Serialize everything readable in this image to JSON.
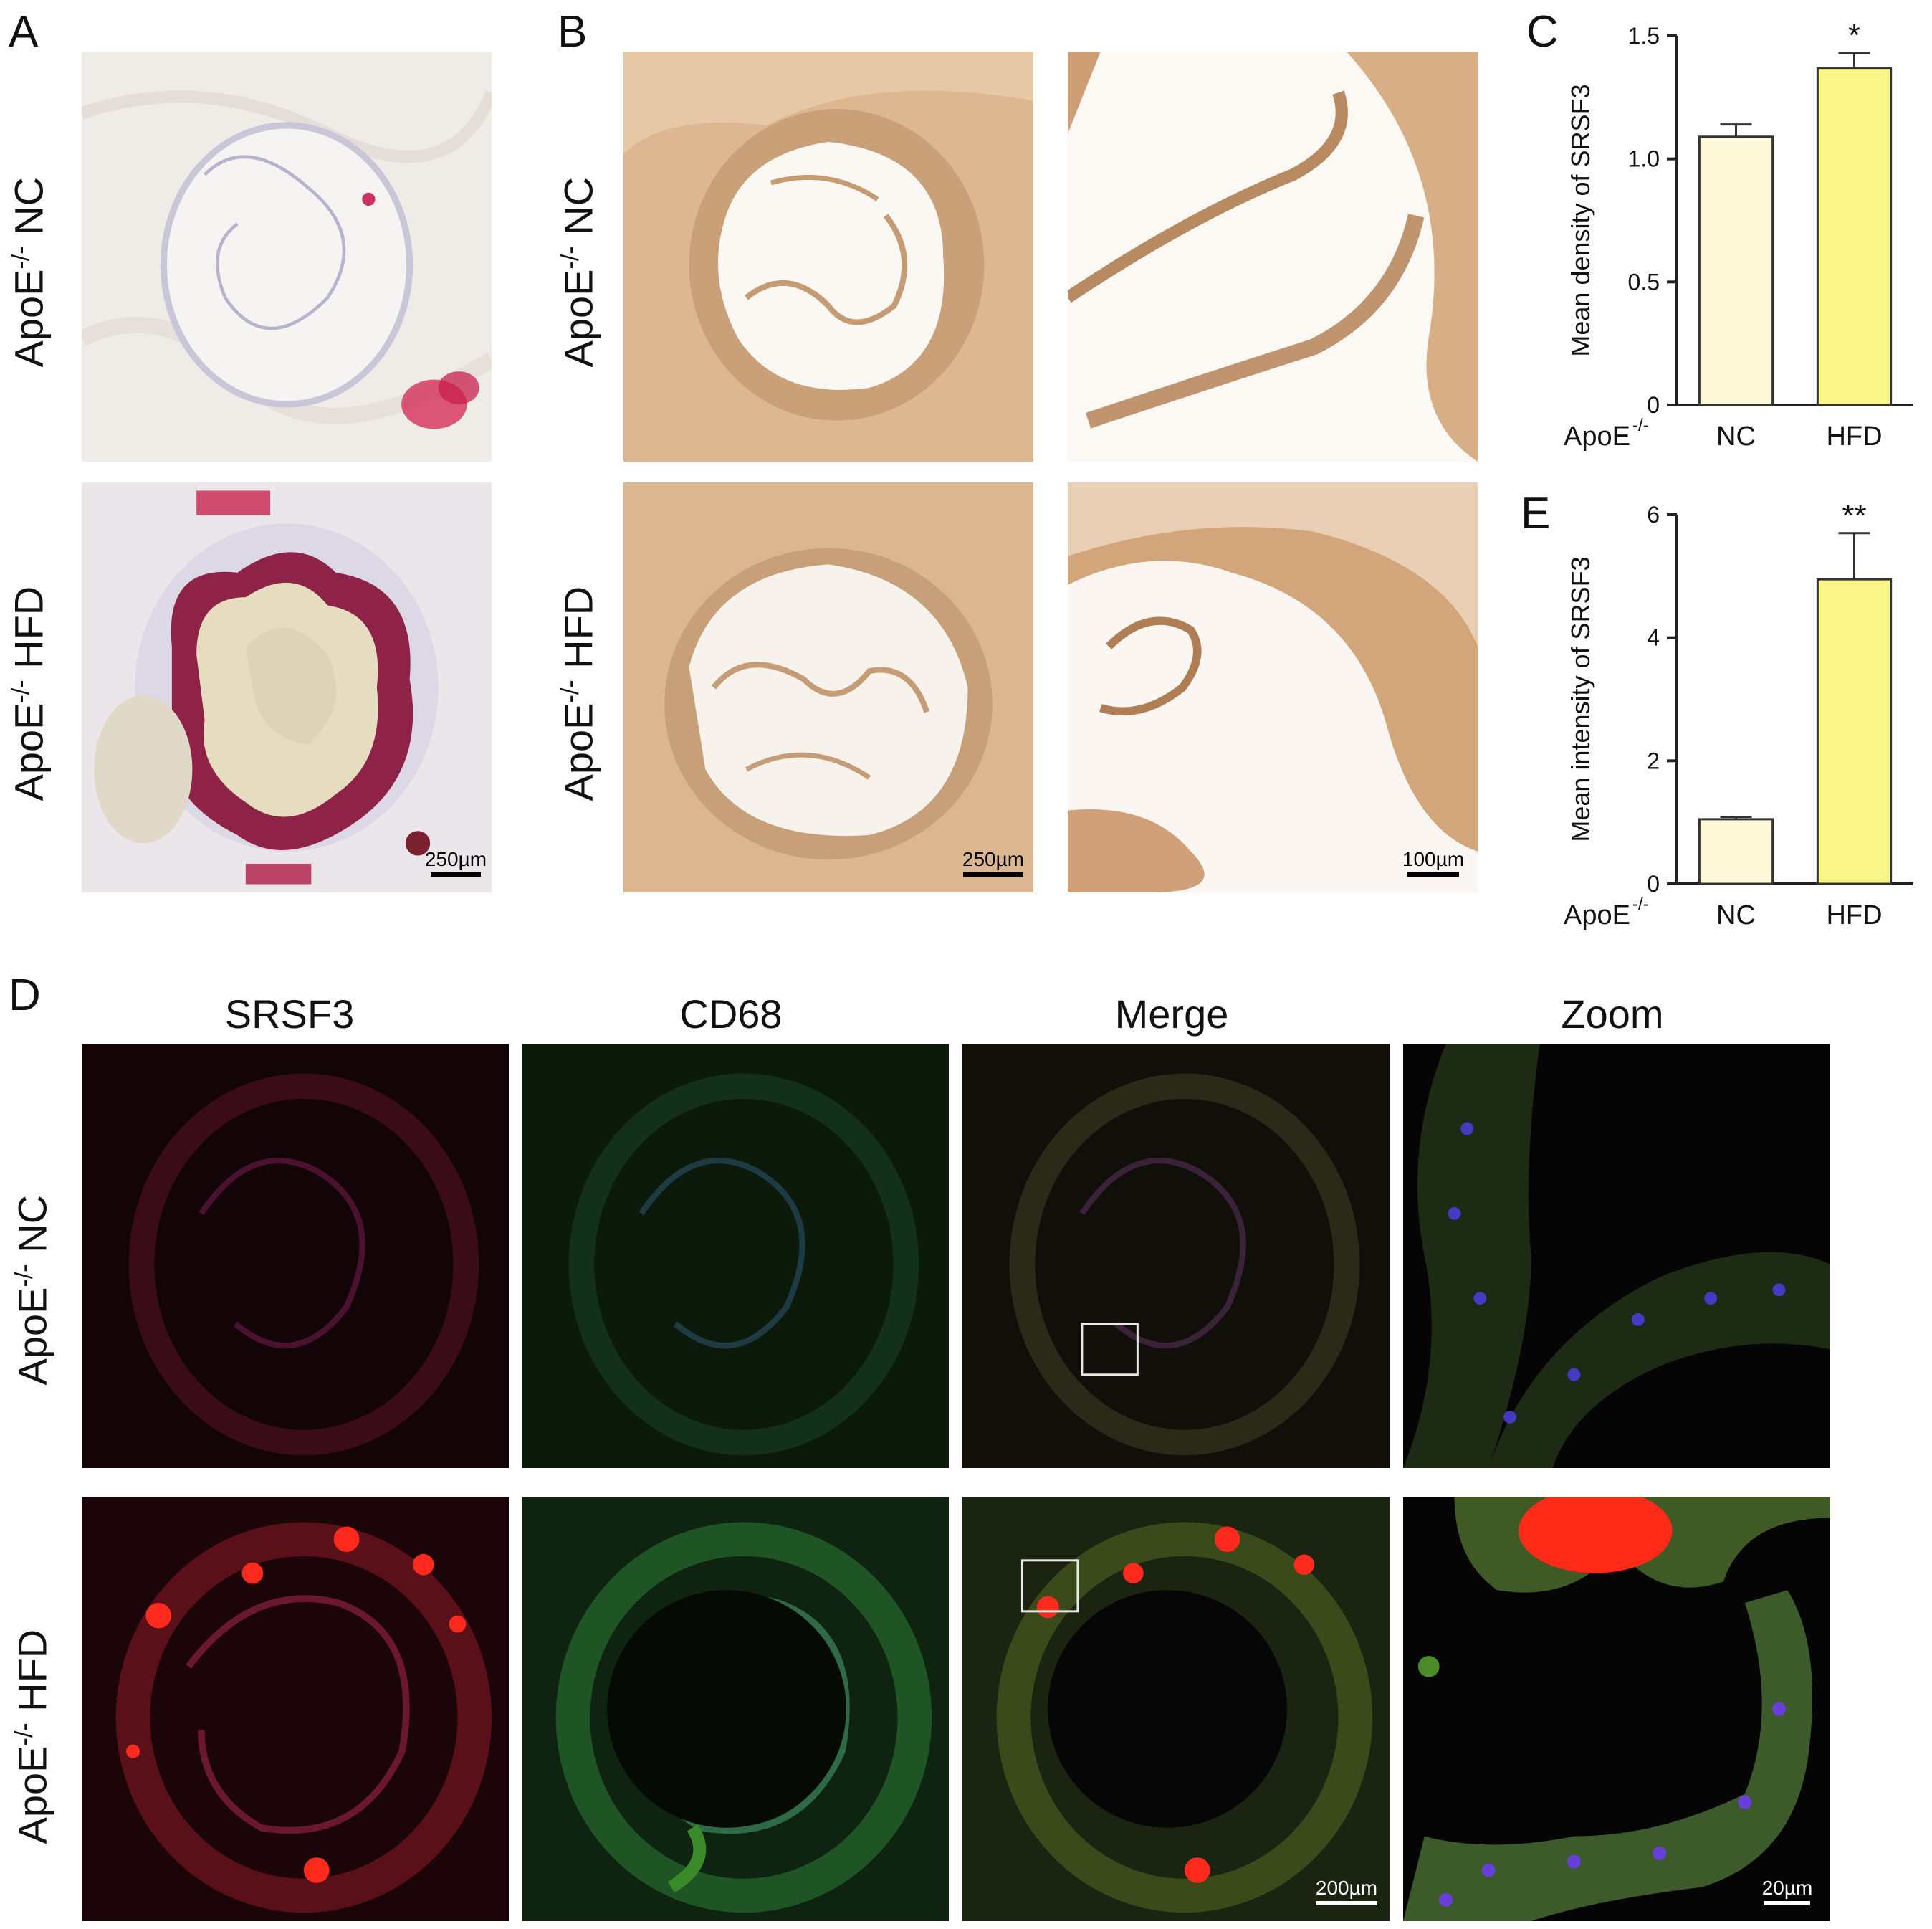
{
  "panels": {
    "A": {
      "letter": "A",
      "rows": [
        {
          "prefix": "ApoE",
          "sup": "-/-",
          "group": "NC"
        },
        {
          "prefix": "ApoE",
          "sup": "-/-",
          "group": "HFD"
        }
      ],
      "scale_label": "250µm"
    },
    "B": {
      "letter": "B",
      "rows": [
        {
          "prefix": "ApoE",
          "sup": "-/-",
          "group": "NC"
        },
        {
          "prefix": "ApoE",
          "sup": "-/-",
          "group": "HFD"
        }
      ],
      "scale_label_low": "250µm",
      "scale_label_high": "100µm"
    },
    "C": {
      "letter": "C"
    },
    "E": {
      "letter": "E"
    },
    "D": {
      "letter": "D",
      "columns": [
        "SRSF3",
        "CD68",
        "Merge",
        "Zoom"
      ],
      "rows": [
        {
          "prefix": "ApoE",
          "sup": "-/-",
          "group": "NC"
        },
        {
          "prefix": "ApoE",
          "sup": "-/-",
          "group": "HFD"
        }
      ],
      "scale_label_merge": "200µm",
      "scale_label_zoom": "20µm"
    }
  },
  "chart_data": [
    {
      "id": "C",
      "type": "bar",
      "categories": [
        "NC",
        "HFD"
      ],
      "x_prefix": "ApoE",
      "x_prefix_sup": "-/-",
      "values": [
        1.09,
        1.37
      ],
      "errors": [
        0.05,
        0.06
      ],
      "significance": [
        "",
        "*"
      ],
      "ylabel": "Mean density of SRSF3",
      "ylim": [
        0,
        1.5
      ],
      "yticks": [
        "0",
        "0.5",
        "1.0",
        "1.5"
      ],
      "ytick_values": [
        0,
        0.5,
        1.0,
        1.5
      ],
      "colors": [
        "#fdf9d8",
        "#f9f587"
      ]
    },
    {
      "id": "E",
      "type": "bar",
      "categories": [
        "NC",
        "HFD"
      ],
      "x_prefix": "ApoE",
      "x_prefix_sup": "-/-",
      "values": [
        1.05,
        4.95
      ],
      "errors": [
        0.04,
        0.75
      ],
      "significance": [
        "",
        "**"
      ],
      "ylabel": "Mean intensity of SRSF3",
      "ylim": [
        0,
        6
      ],
      "yticks": [
        "0",
        "2",
        "4",
        "6"
      ],
      "ytick_values": [
        0,
        2,
        4,
        6
      ],
      "colors": [
        "#fdf9d8",
        "#f9f587"
      ]
    }
  ]
}
